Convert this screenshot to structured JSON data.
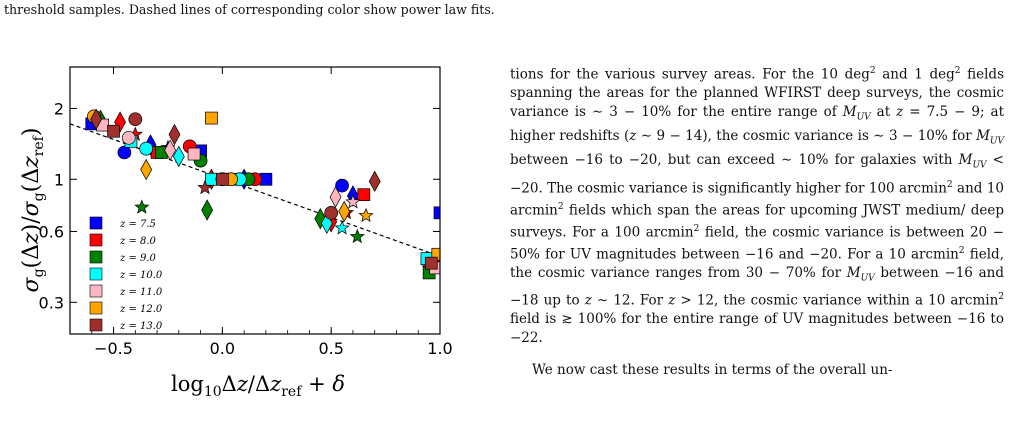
{
  "caption_tail": "threshold samples. Dashed lines of corresponding color show power law fits.",
  "chart_data": {
    "type": "scatter",
    "ylabel": "σ_g(Δz)/σ_g(Δz_ref)",
    "xlabel": "log10 Δz/Δz_ref + δ",
    "xlim": [
      -0.7,
      1.0
    ],
    "ylim_log": [
      0.22,
      3.0
    ],
    "y_scale": "log",
    "x_ticks": [
      {
        "v": -0.5,
        "label": "−0.5"
      },
      {
        "v": 0.0,
        "label": "0.0"
      },
      {
        "v": 0.5,
        "label": "0.5"
      },
      {
        "v": 1.0,
        "label": "1.0"
      }
    ],
    "y_ticks": [
      {
        "v": 0.3,
        "label": "0.3"
      },
      {
        "v": 0.6,
        "label": "0.6"
      },
      {
        "v": 1.0,
        "label": "1"
      },
      {
        "v": 2.0,
        "label": "2"
      }
    ],
    "legend_placement": "lower-left",
    "fit_line": {
      "x": [
        -0.7,
        1.0
      ],
      "y": [
        1.72,
        0.47
      ],
      "style": "dashed",
      "color": "#000000"
    },
    "series": [
      {
        "name": "z = 7.5",
        "color": "#0000ff",
        "points": [
          [
            -0.6,
            1.72
          ],
          [
            -0.45,
            1.3
          ],
          [
            -0.33,
            1.4
          ],
          [
            -0.25,
            1.36
          ],
          [
            -0.1,
            1.32
          ],
          [
            0.0,
            1.0
          ],
          [
            0.1,
            1.0
          ],
          [
            0.2,
            1.0
          ],
          [
            0.55,
            0.94
          ],
          [
            0.6,
            0.85
          ],
          [
            0.95,
            0.42
          ],
          [
            1.0,
            0.72
          ]
        ]
      },
      {
        "name": "z = 8.0",
        "color": "#ff0000",
        "points": [
          [
            -0.58,
            1.82
          ],
          [
            -0.47,
            1.75
          ],
          [
            -0.4,
            1.55
          ],
          [
            -0.3,
            1.3
          ],
          [
            -0.15,
            1.38
          ],
          [
            -0.05,
            1.0
          ],
          [
            0.05,
            1.0
          ],
          [
            0.15,
            1.0
          ],
          [
            0.5,
            0.66
          ],
          [
            0.57,
            0.72
          ],
          [
            0.65,
            0.86
          ],
          [
            0.97,
            0.45
          ]
        ]
      },
      {
        "name": "z = 9.0",
        "color": "#008000",
        "points": [
          [
            -0.56,
            1.78
          ],
          [
            -0.37,
            0.76
          ],
          [
            -0.28,
            1.3
          ],
          [
            -0.1,
            1.2
          ],
          [
            -0.07,
            0.74
          ],
          [
            0.02,
            1.0
          ],
          [
            0.12,
            1.0
          ],
          [
            0.45,
            0.68
          ],
          [
            0.62,
            0.57
          ],
          [
            0.95,
            0.4
          ]
        ]
      },
      {
        "name": "z = 10.0",
        "color": "#00ffff",
        "points": [
          [
            -0.57,
            1.75
          ],
          [
            -0.42,
            1.45
          ],
          [
            -0.35,
            1.35
          ],
          [
            -0.2,
            1.25
          ],
          [
            -0.05,
            1.0
          ],
          [
            0.08,
            1.0
          ],
          [
            0.48,
            0.65
          ],
          [
            0.55,
            0.62
          ],
          [
            0.94,
            0.46
          ]
        ]
      },
      {
        "name": "z = 11.0",
        "color": "#ffb6c1",
        "points": [
          [
            -0.55,
            1.7
          ],
          [
            -0.43,
            1.5
          ],
          [
            -0.24,
            1.33
          ],
          [
            -0.13,
            1.28
          ],
          [
            0.0,
            1.0
          ],
          [
            0.52,
            0.84
          ],
          [
            0.6,
            0.8
          ],
          [
            0.98,
            0.42
          ]
        ]
      },
      {
        "name": "z = 12.0",
        "color": "#ffa500",
        "points": [
          [
            -0.59,
            1.85
          ],
          [
            -0.35,
            1.1
          ],
          [
            -0.05,
            1.82
          ],
          [
            0.04,
            1.0
          ],
          [
            0.56,
            0.73
          ],
          [
            0.66,
            0.7
          ],
          [
            0.99,
            0.48
          ]
        ]
      },
      {
        "name": "z = 13.0",
        "color": "#a0302e",
        "points": [
          [
            -0.58,
            1.8
          ],
          [
            -0.5,
            1.6
          ],
          [
            -0.4,
            1.8
          ],
          [
            -0.22,
            1.55
          ],
          [
            -0.08,
            0.92
          ],
          [
            0.0,
            1.0
          ],
          [
            0.5,
            0.72
          ],
          [
            0.7,
            0.98
          ],
          [
            0.96,
            0.44
          ]
        ]
      }
    ]
  },
  "body": {
    "p1_runs": [
      {
        "t": "tions for the various survey areas. For the 10 deg"
      },
      {
        "t": "2",
        "sup": true
      },
      {
        "t": " and 1 deg"
      },
      {
        "t": "2",
        "sup": true
      },
      {
        "t": " fields spanning the areas for the planned WFIRST deep surveys, the cosmic variance is ∼ 3 − 10% for the entire range of "
      },
      {
        "t": "M",
        "i": true
      },
      {
        "t": "UV",
        "sub": true,
        "i": true
      },
      {
        "t": " at "
      },
      {
        "t": "z",
        "i": true
      },
      {
        "t": " = 7.5 − 9; at higher redshifts ("
      },
      {
        "t": "z",
        "i": true
      },
      {
        "t": " ∼ 9 − 14), the cosmic variance is ∼ 3 − 10% for "
      },
      {
        "t": "M",
        "i": true
      },
      {
        "t": "UV",
        "sub": true,
        "i": true
      },
      {
        "t": " between −16 to −20, but can exceed ∼ 10% for galaxies with "
      },
      {
        "t": "M",
        "i": true
      },
      {
        "t": "UV",
        "sub": true,
        "i": true
      },
      {
        "t": " < −20. The cosmic variance is significantly higher for 100 arcmin"
      },
      {
        "t": "2",
        "sup": true
      },
      {
        "t": " and 10 arcmin"
      },
      {
        "t": "2",
        "sup": true
      },
      {
        "t": " fields which span the areas for upcoming JWST medium/ deep surveys. For a 100 arcmin"
      },
      {
        "t": "2",
        "sup": true
      },
      {
        "t": " field, the cosmic variance is between 20 − 50% for UV magnitudes between −16 and −20. For a 10 arcmin"
      },
      {
        "t": "2",
        "sup": true
      },
      {
        "t": " field, the cosmic variance ranges from 30 − 70% for "
      },
      {
        "t": "M",
        "i": true
      },
      {
        "t": "UV",
        "sub": true,
        "i": true
      },
      {
        "t": " between −16 and −18 up to "
      },
      {
        "t": "z",
        "i": true
      },
      {
        "t": " ∼ 12. For "
      },
      {
        "t": "z",
        "i": true
      },
      {
        "t": " > 12, the cosmic variance within a 10 arcmin"
      },
      {
        "t": "2",
        "sup": true
      },
      {
        "t": " field is ≳ 100% for the entire range of UV magnitudes between −16 to −22."
      }
    ],
    "p2": "We now cast these results in terms of the overall un-"
  }
}
